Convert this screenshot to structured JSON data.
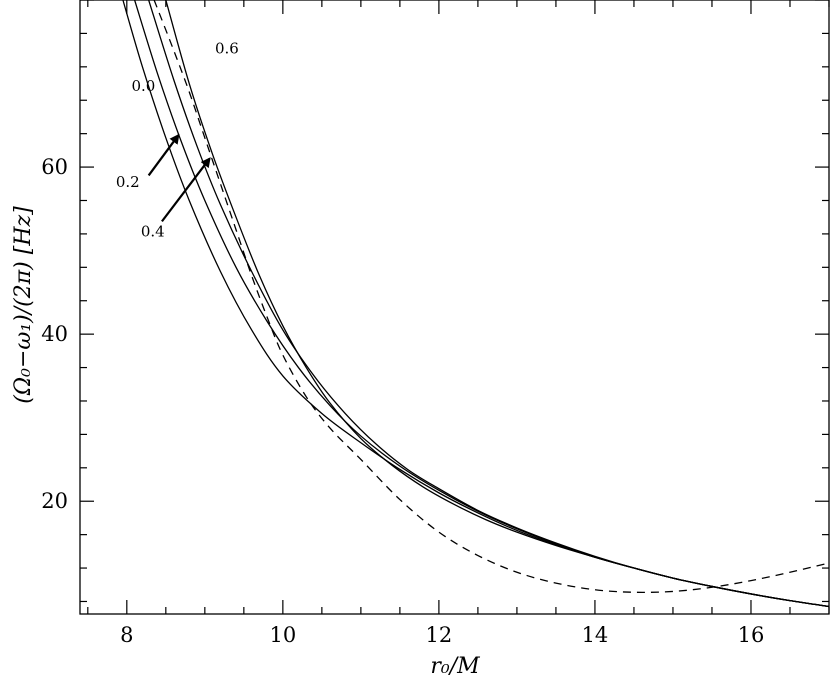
{
  "chart_data": {
    "type": "line",
    "title": "",
    "xlabel": "r₀/M",
    "ylabel": "(Ω₀−ω₁)/(2π)  [Hz]",
    "xlim": [
      7.4,
      17.0
    ],
    "ylim": [
      6.5,
      80
    ],
    "x_ticks": [
      8,
      10,
      12,
      14,
      16
    ],
    "y_ticks": [
      20,
      40,
      60
    ],
    "grid": false,
    "legend": "none",
    "series": [
      {
        "name": "0.0",
        "style": "solid",
        "x": [
          7.95,
          8.2,
          8.5,
          8.8,
          9.2,
          9.6,
          10.0,
          10.5,
          11.0,
          11.5,
          12.0,
          12.5,
          13.0,
          13.5,
          14.0,
          14.5,
          15.0,
          15.5,
          16.0,
          16.5,
          17.0
        ],
        "y": [
          80.0,
          72.0,
          63.5,
          56.0,
          47.5,
          40.5,
          35.0,
          30.5,
          27.0,
          23.8,
          21.0,
          18.6,
          16.5,
          14.8,
          13.3,
          12.0,
          10.8,
          9.8,
          8.9,
          8.1,
          7.4
        ]
      },
      {
        "name": "0.2",
        "style": "solid",
        "x": [
          8.1,
          8.4,
          8.7,
          9.0,
          9.4,
          9.8,
          10.2,
          10.6,
          11.0,
          11.5,
          12.0,
          12.5,
          13.0,
          13.5,
          14.0,
          14.5,
          15.0,
          15.5,
          16.0,
          16.5,
          17.0
        ],
        "y": [
          80.0,
          71.0,
          63.0,
          56.0,
          48.0,
          41.5,
          36.0,
          31.5,
          27.8,
          24.2,
          21.3,
          18.8,
          16.7,
          14.9,
          13.3,
          12.0,
          10.8,
          9.8,
          8.9,
          8.1,
          7.4
        ]
      },
      {
        "name": "0.4",
        "style": "solid",
        "x": [
          8.28,
          8.6,
          8.9,
          9.2,
          9.6,
          10.0,
          10.4,
          10.8,
          11.2,
          11.6,
          12.0,
          12.5,
          13.0,
          13.5,
          14.0,
          14.5,
          15.0,
          15.5,
          16.0,
          16.5,
          17.0
        ],
        "y": [
          80.0,
          70.5,
          62.5,
          55.5,
          47.5,
          40.5,
          35.0,
          30.5,
          26.8,
          23.8,
          21.5,
          18.9,
          16.8,
          15.0,
          13.4,
          12.0,
          10.8,
          9.8,
          8.9,
          8.1,
          7.4
        ]
      },
      {
        "name": "0.6",
        "style": "solid",
        "x": [
          8.5,
          8.8,
          9.1,
          9.4,
          9.7,
          10.0,
          10.3,
          10.6,
          11.0,
          11.4,
          11.8,
          12.2,
          12.6,
          13.0,
          13.5,
          14.0,
          14.5,
          15.0,
          15.5,
          16.0,
          16.5,
          17.0
        ],
        "y": [
          80.0,
          70.0,
          61.5,
          54.0,
          47.0,
          41.0,
          36.0,
          31.8,
          27.5,
          24.3,
          21.7,
          19.6,
          17.8,
          16.3,
          14.7,
          13.3,
          12.0,
          10.8,
          9.8,
          8.9,
          8.1,
          7.4
        ]
      },
      {
        "name": "",
        "style": "dashed",
        "x": [
          8.35,
          8.6,
          8.8,
          9.0,
          9.2,
          9.4,
          9.6,
          9.8,
          10.0,
          10.3,
          10.6,
          11.0,
          11.5,
          12.0,
          12.5,
          13.0,
          13.5,
          14.0,
          14.5,
          15.0,
          15.5,
          16.0,
          16.5,
          17.0
        ],
        "y": [
          80.0,
          74.0,
          69.0,
          63.5,
          58.0,
          52.5,
          47.0,
          42.0,
          37.5,
          32.5,
          28.8,
          25.0,
          20.2,
          16.3,
          13.5,
          11.5,
          10.2,
          9.4,
          9.1,
          9.2,
          9.7,
          10.5,
          11.5,
          12.6
        ]
      }
    ],
    "annotations": [
      {
        "text": "0.0",
        "x": 8.06,
        "y": 69.1
      },
      {
        "text": "0.2",
        "x": 7.86,
        "y": 57.6
      },
      {
        "text": "0.4",
        "x": 8.18,
        "y": 51.7
      },
      {
        "text": "0.6",
        "x": 9.13,
        "y": 73.6
      }
    ],
    "arrows": [
      {
        "from": [
          8.28,
          59.0
        ],
        "to": [
          8.66,
          63.8
        ]
      },
      {
        "from": [
          8.45,
          53.5
        ],
        "to": [
          9.06,
          61.0
        ]
      }
    ]
  }
}
